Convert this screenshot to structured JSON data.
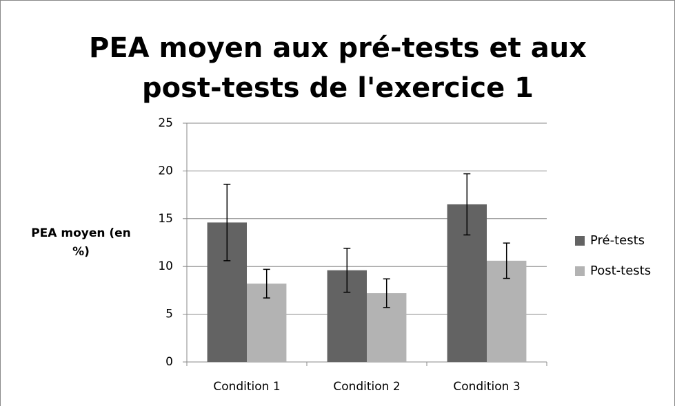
{
  "chart_data": {
    "type": "bar",
    "title": "PEA moyen aux pré-tests et aux post-tests de l'exercice 1",
    "y_label": "PEA moyen (en %)",
    "categories": [
      "Condition 1",
      "Condition 2",
      "Condition 3"
    ],
    "series": [
      {
        "name": "Pré-tests",
        "color": "#636363",
        "values": [
          14.6,
          9.6,
          16.5
        ],
        "errors": [
          4.0,
          2.3,
          3.2
        ]
      },
      {
        "name": "Post-tests",
        "color": "#b3b3b3",
        "values": [
          8.2,
          7.2,
          10.6
        ],
        "errors": [
          1.5,
          1.5,
          1.85
        ]
      }
    ],
    "ylim": [
      0,
      25
    ],
    "yticks": [
      0,
      5,
      10,
      15,
      20,
      25
    ],
    "grid": true,
    "legend": "right"
  }
}
